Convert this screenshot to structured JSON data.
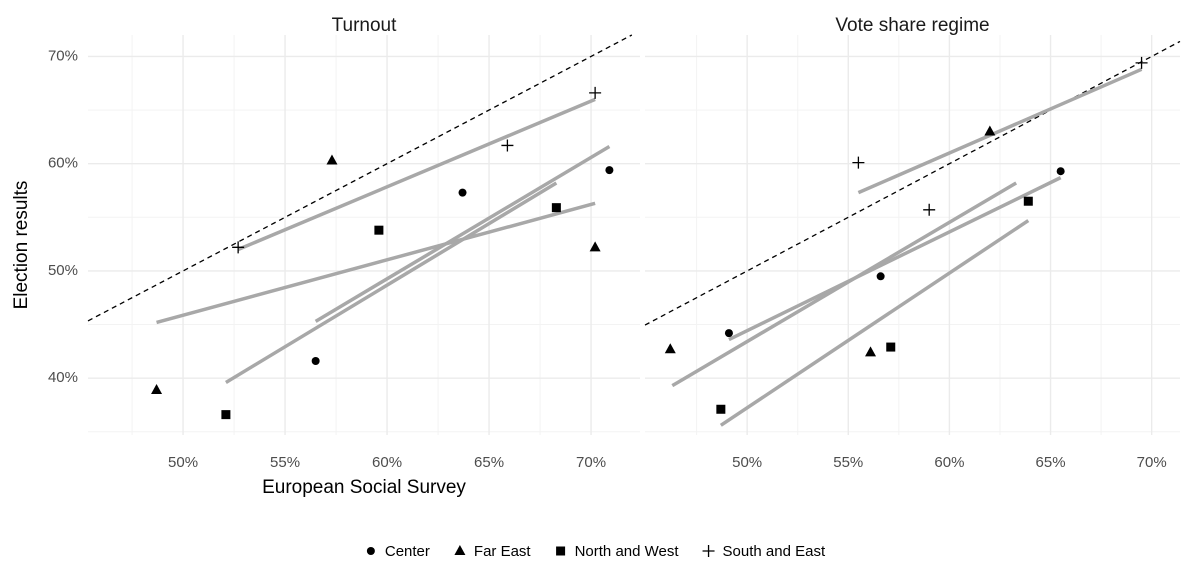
{
  "chart_data": {
    "type": "scatter",
    "xlabel": "European Social Survey",
    "ylabel": "Election results",
    "ylim": [
      34.7,
      72
    ],
    "yticks": [
      {
        "value": 40,
        "label": "40%"
      },
      {
        "value": 50,
        "label": "50%"
      },
      {
        "value": 60,
        "label": "60%"
      },
      {
        "value": 70,
        "label": "70%"
      }
    ],
    "grid": true,
    "identity_line": true,
    "fit_color": "#a8a8a8",
    "legend": "bottom",
    "series": [
      {
        "name": "Center",
        "marker": "circle",
        "color": "#000000"
      },
      {
        "name": "Far East",
        "marker": "triangle",
        "color": "#000000"
      },
      {
        "name": "North and West",
        "marker": "square",
        "color": "#000000"
      },
      {
        "name": "South and East",
        "marker": "plus",
        "color": "#000000"
      }
    ],
    "facets": [
      {
        "title": "Turnout",
        "xlim": [
          45.34,
          72.4
        ],
        "xticks": [
          {
            "value": 50,
            "label": "50%"
          },
          {
            "value": 55,
            "label": "55%"
          },
          {
            "value": 60,
            "label": "60%"
          },
          {
            "value": 65,
            "label": "65%"
          },
          {
            "value": 70,
            "label": "70%"
          }
        ],
        "groups": [
          {
            "x": [
              56.5,
              63.7,
              70.9
            ],
            "y": [
              41.6,
              57.3,
              59.4
            ],
            "fit": {
              "x": [
                56.5,
                70.9
              ],
              "y": [
                45.3,
                61.6
              ]
            }
          },
          {
            "x": [
              48.7,
              57.3,
              70.2
            ],
            "y": [
              38.9,
              60.3,
              52.2
            ],
            "fit": {
              "x": [
                48.7,
                70.2
              ],
              "y": [
                45.2,
                56.3
              ]
            }
          },
          {
            "x": [
              52.1,
              59.6,
              68.3
            ],
            "y": [
              36.6,
              53.8,
              55.9
            ],
            "fit": {
              "x": [
                52.1,
                68.3
              ],
              "y": [
                39.6,
                58.2
              ]
            }
          },
          {
            "x": [
              52.7,
              65.9,
              70.2
            ],
            "y": [
              52.2,
              61.7,
              66.6
            ],
            "fit": {
              "x": [
                52.7,
                70.2
              ],
              "y": [
                52.0,
                66.0
              ]
            }
          }
        ]
      },
      {
        "title": "Vote share regime",
        "xlim": [
          44.95,
          71.4
        ],
        "xticks": [
          {
            "value": 50,
            "label": "50%"
          },
          {
            "value": 55,
            "label": "55%"
          },
          {
            "value": 60,
            "label": "60%"
          },
          {
            "value": 65,
            "label": "65%"
          },
          {
            "value": 70,
            "label": "70%"
          }
        ],
        "groups": [
          {
            "x": [
              49.1,
              56.6,
              65.5
            ],
            "y": [
              44.2,
              49.5,
              59.3
            ],
            "fit": {
              "x": [
                49.1,
                65.5
              ],
              "y": [
                43.6,
                58.7
              ]
            }
          },
          {
            "x": [
              46.2,
              56.1,
              62.0
            ],
            "y": [
              42.7,
              42.4,
              63.0
            ],
            "fit": {
              "x": [
                46.3,
                63.3
              ],
              "y": [
                39.3,
                58.2
              ]
            }
          },
          {
            "x": [
              48.7,
              57.1,
              63.9
            ],
            "y": [
              37.1,
              42.9,
              56.5
            ],
            "fit": {
              "x": [
                48.7,
                63.9
              ],
              "y": [
                35.6,
                54.7
              ]
            }
          },
          {
            "x": [
              55.5,
              59.0,
              69.5
            ],
            "y": [
              60.1,
              55.7,
              69.4
            ],
            "fit": {
              "x": [
                55.5,
                69.5
              ],
              "y": [
                57.3,
                68.8
              ]
            }
          }
        ]
      }
    ]
  }
}
